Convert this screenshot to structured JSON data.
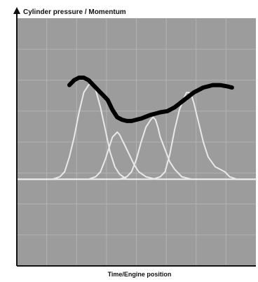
{
  "chart_data": {
    "type": "line",
    "title": "",
    "ylabel": "Cylinder pressure / Momentum",
    "xlabel": "Time/Engine position",
    "grid": true,
    "legend": "none",
    "xlim": [
      0,
      100
    ],
    "ylim": [
      0,
      100
    ],
    "colors": {
      "plot_background": "#9c9c9c",
      "grid": "#b2b2b2",
      "cylinder_curves": "#e9e9e9",
      "momentum_curve": "#000000",
      "axes": "#111111"
    },
    "series": [
      {
        "role": "cylinder-pressure",
        "points": [
          [
            0,
            35
          ],
          [
            5,
            35
          ],
          [
            10,
            35
          ],
          [
            15,
            35
          ],
          [
            18,
            36
          ],
          [
            20,
            38
          ],
          [
            22,
            44
          ],
          [
            24,
            52
          ],
          [
            26,
            62
          ],
          [
            28,
            70
          ],
          [
            30,
            73
          ],
          [
            31,
            74
          ],
          [
            32,
            73
          ],
          [
            33,
            71
          ],
          [
            35,
            64
          ],
          [
            37,
            55
          ],
          [
            39,
            46
          ],
          [
            41,
            40
          ],
          [
            43,
            37
          ],
          [
            46,
            35
          ],
          [
            52,
            35
          ],
          [
            60,
            35
          ],
          [
            70,
            35
          ],
          [
            80,
            35
          ],
          [
            90,
            35
          ],
          [
            100,
            35
          ]
        ]
      },
      {
        "role": "cylinder-pressure",
        "points": [
          [
            0,
            35
          ],
          [
            30,
            35
          ],
          [
            33,
            36
          ],
          [
            35,
            38
          ],
          [
            37,
            43
          ],
          [
            39,
            49
          ],
          [
            40,
            52
          ],
          [
            41,
            53
          ],
          [
            42,
            54
          ],
          [
            43,
            53
          ],
          [
            44,
            51
          ],
          [
            45,
            49
          ],
          [
            47,
            45
          ],
          [
            49,
            41
          ],
          [
            51,
            38
          ],
          [
            54,
            36
          ],
          [
            58,
            35
          ],
          [
            70,
            35
          ],
          [
            80,
            35
          ],
          [
            90,
            35
          ],
          [
            100,
            35
          ]
        ]
      },
      {
        "role": "cylinder-pressure",
        "points": [
          [
            0,
            35
          ],
          [
            43,
            35
          ],
          [
            46,
            36
          ],
          [
            48,
            38
          ],
          [
            50,
            43
          ],
          [
            52,
            50
          ],
          [
            54,
            56
          ],
          [
            56,
            59
          ],
          [
            57,
            60
          ],
          [
            58,
            59
          ],
          [
            59,
            56
          ],
          [
            60,
            52
          ],
          [
            62,
            47
          ],
          [
            64,
            42
          ],
          [
            66,
            39
          ],
          [
            69,
            36
          ],
          [
            73,
            35
          ],
          [
            85,
            35
          ],
          [
            100,
            35
          ]
        ]
      },
      {
        "role": "cylinder-pressure",
        "points": [
          [
            0,
            35
          ],
          [
            57,
            35
          ],
          [
            60,
            36
          ],
          [
            62,
            38
          ],
          [
            64,
            45
          ],
          [
            66,
            55
          ],
          [
            68,
            63
          ],
          [
            70,
            68
          ],
          [
            71,
            70
          ],
          [
            72,
            70
          ],
          [
            73,
            69
          ],
          [
            74,
            66
          ],
          [
            76,
            58
          ],
          [
            78,
            50
          ],
          [
            80,
            44
          ],
          [
            83,
            40
          ],
          [
            85,
            39
          ],
          [
            87,
            38
          ],
          [
            89,
            36
          ],
          [
            92,
            35
          ],
          [
            100,
            35
          ]
        ]
      },
      {
        "role": "momentum",
        "points": [
          [
            22,
            73
          ],
          [
            24,
            75
          ],
          [
            26,
            76
          ],
          [
            28,
            76
          ],
          [
            30,
            75
          ],
          [
            34,
            71
          ],
          [
            38,
            67
          ],
          [
            40,
            63
          ],
          [
            42,
            60
          ],
          [
            44,
            59
          ],
          [
            46,
            58.5
          ],
          [
            48,
            58.5
          ],
          [
            52,
            59.5
          ],
          [
            56,
            61
          ],
          [
            60,
            62
          ],
          [
            63,
            62.5
          ],
          [
            66,
            64
          ],
          [
            70,
            67
          ],
          [
            74,
            70
          ],
          [
            78,
            72
          ],
          [
            82,
            73
          ],
          [
            85,
            73
          ],
          [
            88,
            72.5
          ],
          [
            90,
            72
          ]
        ]
      }
    ]
  }
}
